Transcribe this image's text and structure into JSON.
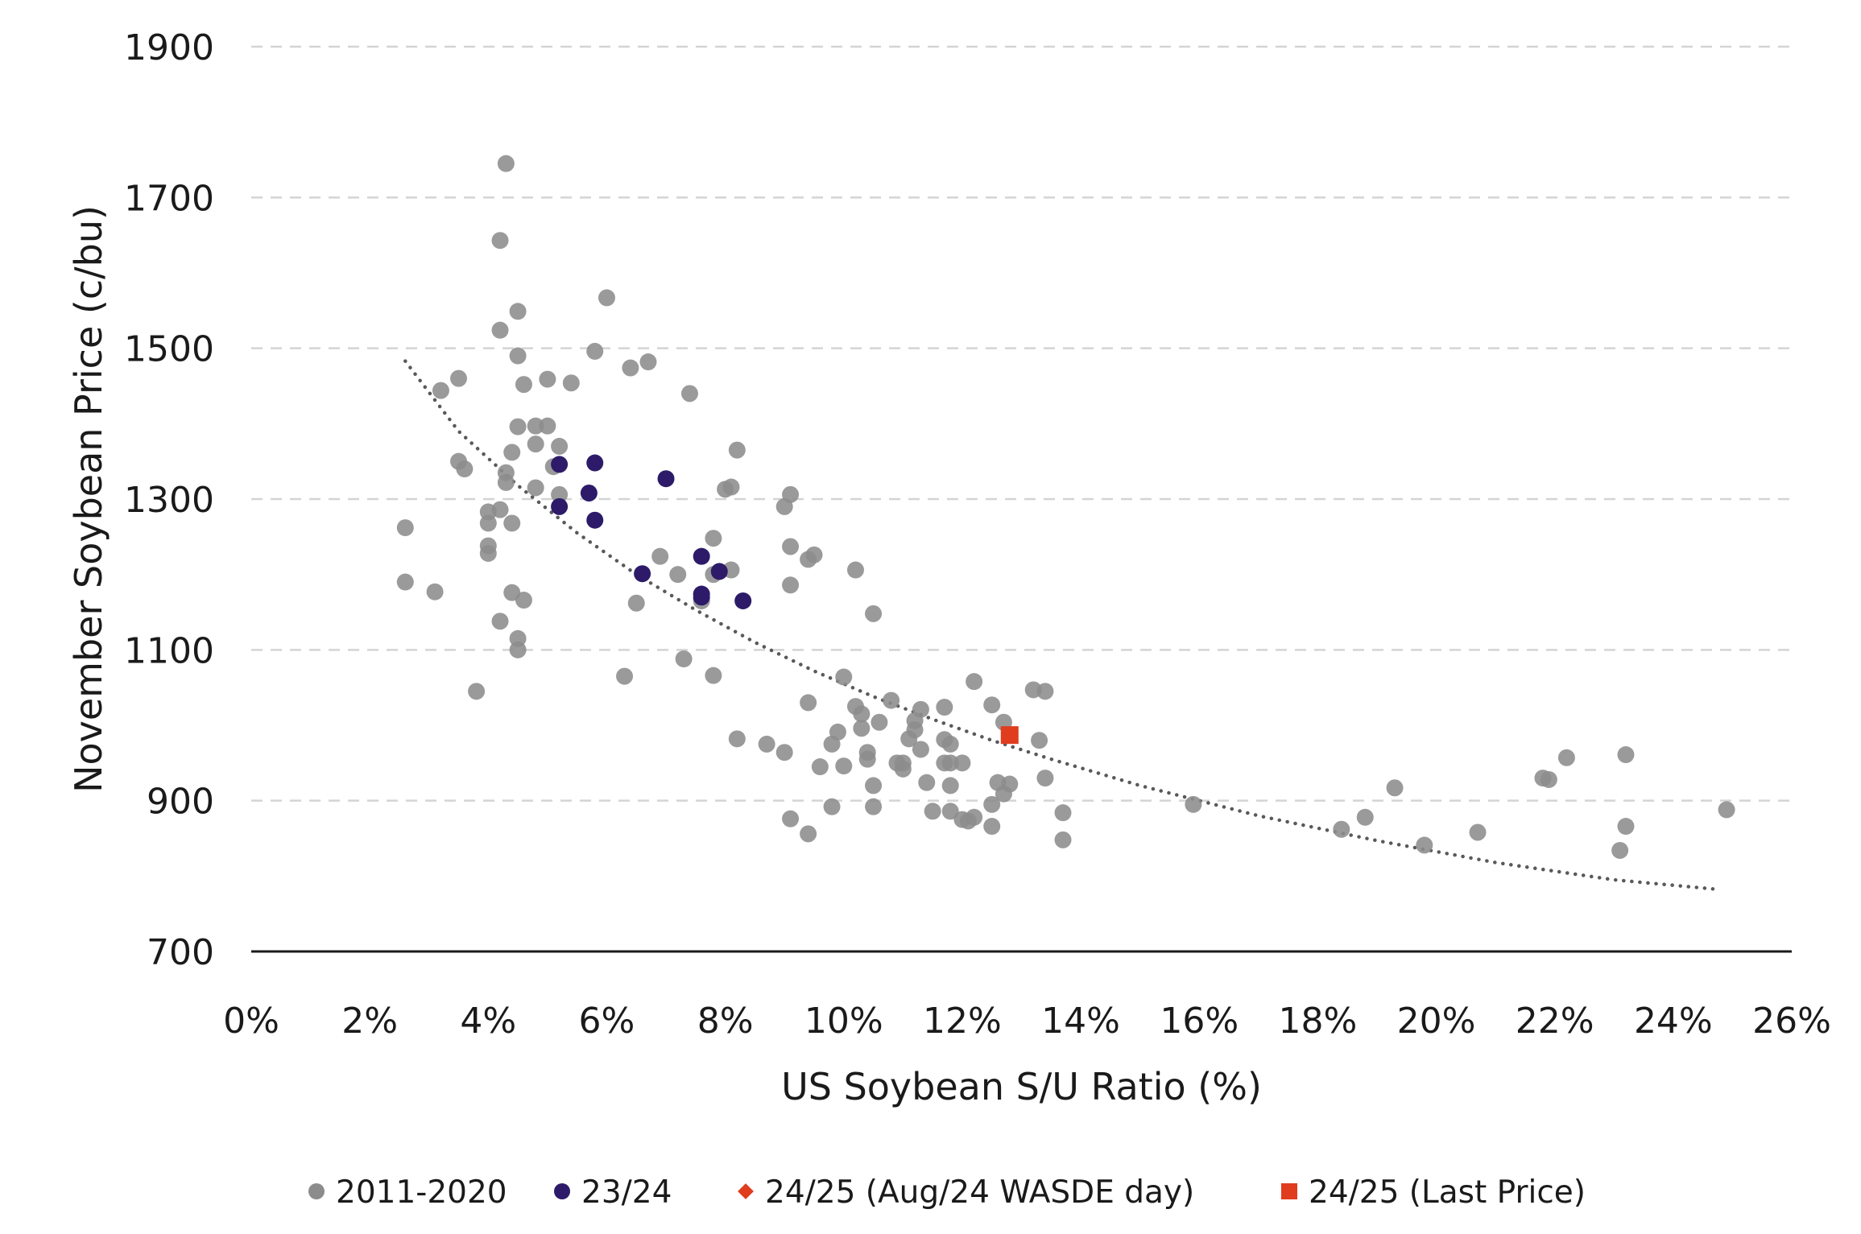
{
  "chart_data": {
    "type": "scatter",
    "title": "",
    "xlabel": "US Soybean S/U Ratio (%)",
    "ylabel": "November Soybean Price (c/bu)",
    "xlim": [
      0,
      26
    ],
    "ylim": [
      700,
      1900
    ],
    "x_ticks": [
      "0%",
      "2%",
      "4%",
      "6%",
      "8%",
      "10%",
      "12%",
      "14%",
      "16%",
      "18%",
      "20%",
      "22%",
      "24%",
      "26%"
    ],
    "y_ticks": [
      "700",
      "900",
      "1100",
      "1300",
      "1500",
      "1700",
      "1900"
    ],
    "grid": "horizontal dashed",
    "legend_position": "bottom",
    "trendline": {
      "style": "dotted",
      "type": "power",
      "x": [
        2.6,
        3.5,
        4.5,
        5.5,
        6.5,
        7.5,
        8.5,
        9.5,
        10.5,
        11.5,
        12.5,
        13.5,
        15,
        17,
        19,
        21,
        23,
        24.8
      ],
      "y": [
        1483,
        1390,
        1318,
        1255,
        1200,
        1153,
        1110,
        1072,
        1038,
        1008,
        980,
        955,
        920,
        880,
        847,
        818,
        795,
        782
      ]
    },
    "series": [
      {
        "name": "2011-2020",
        "marker": "circle",
        "color": "#8c8c8c",
        "points": [
          [
            2.6,
            1262
          ],
          [
            2.6,
            1190
          ],
          [
            3.1,
            1177
          ],
          [
            3.2,
            1444
          ],
          [
            3.5,
            1460
          ],
          [
            3.5,
            1350
          ],
          [
            3.6,
            1340
          ],
          [
            3.8,
            1045
          ],
          [
            4.0,
            1283
          ],
          [
            4.0,
            1268
          ],
          [
            4.0,
            1238
          ],
          [
            4.0,
            1228
          ],
          [
            4.2,
            1643
          ],
          [
            4.2,
            1524
          ],
          [
            4.2,
            1286
          ],
          [
            4.2,
            1138
          ],
          [
            4.3,
            1745
          ],
          [
            4.3,
            1335
          ],
          [
            4.3,
            1322
          ],
          [
            4.4,
            1362
          ],
          [
            4.4,
            1268
          ],
          [
            4.4,
            1176
          ],
          [
            4.5,
            1549
          ],
          [
            4.5,
            1490
          ],
          [
            4.5,
            1396
          ],
          [
            4.5,
            1115
          ],
          [
            4.5,
            1100
          ],
          [
            4.6,
            1452
          ],
          [
            4.6,
            1166
          ],
          [
            4.8,
            1397
          ],
          [
            4.8,
            1373
          ],
          [
            4.8,
            1315
          ],
          [
            5.0,
            1459
          ],
          [
            5.0,
            1397
          ],
          [
            5.1,
            1343
          ],
          [
            5.2,
            1370
          ],
          [
            5.2,
            1306
          ],
          [
            5.4,
            1454
          ],
          [
            5.8,
            1496
          ],
          [
            6.0,
            1567
          ],
          [
            6.3,
            1065
          ],
          [
            6.4,
            1474
          ],
          [
            6.5,
            1162
          ],
          [
            6.7,
            1482
          ],
          [
            6.9,
            1224
          ],
          [
            7.2,
            1200
          ],
          [
            7.3,
            1088
          ],
          [
            7.4,
            1440
          ],
          [
            7.6,
            1165
          ],
          [
            7.8,
            1248
          ],
          [
            7.8,
            1200
          ],
          [
            7.8,
            1066
          ],
          [
            8.0,
            1313
          ],
          [
            8.1,
            1316
          ],
          [
            8.1,
            1206
          ],
          [
            8.2,
            982
          ],
          [
            8.2,
            1365
          ],
          [
            8.7,
            975
          ],
          [
            9.0,
            964
          ],
          [
            9.0,
            1290
          ],
          [
            9.1,
            1306
          ],
          [
            9.1,
            1237
          ],
          [
            9.1,
            1186
          ],
          [
            9.1,
            876
          ],
          [
            9.4,
            1220
          ],
          [
            9.4,
            1030
          ],
          [
            9.4,
            856
          ],
          [
            9.5,
            1226
          ],
          [
            9.6,
            945
          ],
          [
            9.8,
            892
          ],
          [
            9.8,
            975
          ],
          [
            9.9,
            991
          ],
          [
            10.0,
            946
          ],
          [
            10.0,
            1064
          ],
          [
            10.2,
            1206
          ],
          [
            10.2,
            1025
          ],
          [
            10.3,
            1015
          ],
          [
            10.3,
            996
          ],
          [
            10.4,
            964
          ],
          [
            10.4,
            955
          ],
          [
            10.5,
            1148
          ],
          [
            10.5,
            892
          ],
          [
            10.5,
            920
          ],
          [
            10.6,
            1004
          ],
          [
            10.8,
            1033
          ],
          [
            10.9,
            950
          ],
          [
            11.0,
            950
          ],
          [
            11.0,
            942
          ],
          [
            11.1,
            982
          ],
          [
            11.2,
            994
          ],
          [
            11.2,
            1006
          ],
          [
            11.3,
            1021
          ],
          [
            11.3,
            968
          ],
          [
            11.4,
            924
          ],
          [
            11.5,
            886
          ],
          [
            11.7,
            1024
          ],
          [
            11.7,
            981
          ],
          [
            11.7,
            950
          ],
          [
            11.8,
            975
          ],
          [
            11.8,
            950
          ],
          [
            11.8,
            920
          ],
          [
            11.8,
            886
          ],
          [
            12.0,
            950
          ],
          [
            12.0,
            875
          ],
          [
            12.1,
            873
          ],
          [
            12.2,
            1058
          ],
          [
            12.2,
            878
          ],
          [
            12.5,
            1027
          ],
          [
            12.5,
            895
          ],
          [
            12.5,
            866
          ],
          [
            12.6,
            924
          ],
          [
            12.7,
            1004
          ],
          [
            12.7,
            909
          ],
          [
            12.8,
            922
          ],
          [
            13.2,
            1047
          ],
          [
            13.3,
            980
          ],
          [
            13.4,
            1045
          ],
          [
            13.4,
            930
          ],
          [
            13.7,
            884
          ],
          [
            13.7,
            848
          ],
          [
            15.9,
            895
          ],
          [
            18.4,
            862
          ],
          [
            18.8,
            878
          ],
          [
            19.3,
            917
          ],
          [
            19.8,
            841
          ],
          [
            20.7,
            858
          ],
          [
            21.8,
            930
          ],
          [
            21.9,
            928
          ],
          [
            22.2,
            957
          ],
          [
            23.1,
            834
          ],
          [
            23.2,
            961
          ],
          [
            23.2,
            866
          ],
          [
            24.9,
            888
          ]
        ]
      },
      {
        "name": "23/24",
        "marker": "circle",
        "color": "#2d1b69",
        "points": [
          [
            5.2,
            1346
          ],
          [
            5.2,
            1290
          ],
          [
            5.7,
            1308
          ],
          [
            5.8,
            1348
          ],
          [
            5.8,
            1272
          ],
          [
            6.6,
            1201
          ],
          [
            7.0,
            1327
          ],
          [
            7.6,
            1224
          ],
          [
            7.6,
            1174
          ],
          [
            7.6,
            1170
          ],
          [
            7.9,
            1204
          ],
          [
            8.3,
            1165
          ]
        ]
      },
      {
        "name": "24/25 (Aug/24 WASDE day)",
        "marker": "diamond",
        "color": "#e03c1e",
        "points": []
      },
      {
        "name": "24/25 (Last Price)",
        "marker": "square",
        "color": "#e03c1e",
        "points": [
          [
            12.8,
            987
          ]
        ]
      }
    ]
  }
}
